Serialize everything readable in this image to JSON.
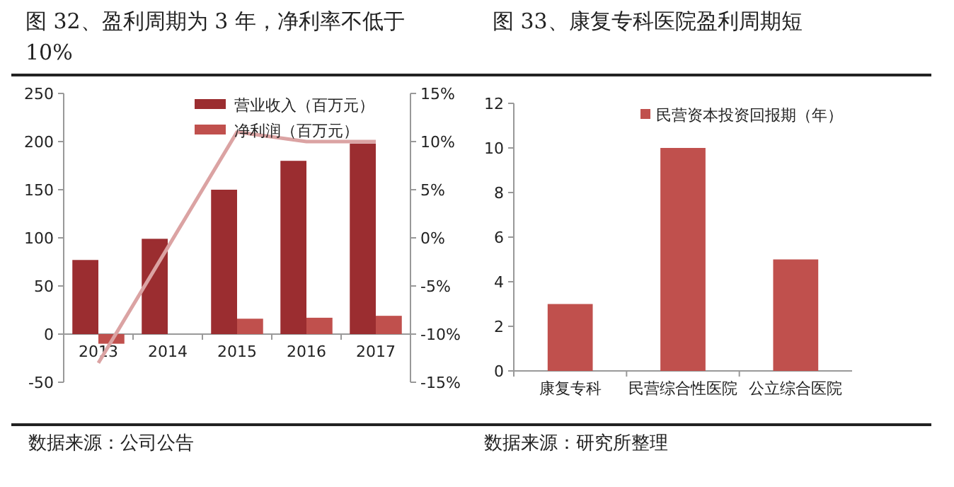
{
  "chart_data": [
    {
      "type": "bar",
      "title": "图 32、盈利周期为 3 年，净利率不低于 10%",
      "categories": [
        "2013",
        "2014",
        "2015",
        "2016",
        "2017"
      ],
      "series": [
        {
          "name": "营业收入（百万元）",
          "color": "#9b2d30",
          "values": [
            77,
            99,
            150,
            180,
            198
          ]
        },
        {
          "name": "净利润（百万元）",
          "color": "#c0504d",
          "values": [
            -10,
            0,
            16,
            17,
            19
          ]
        },
        {
          "type": "line",
          "axis": "y2",
          "color": "#dba3a3",
          "values": [
            -13,
            -1,
            11,
            10,
            10
          ]
        }
      ],
      "ylim": [
        -50,
        250
      ],
      "yticks": [
        -50,
        0,
        50,
        100,
        150,
        200,
        250
      ],
      "y2lim": [
        -15,
        15
      ],
      "y2ticks": [
        {
          "value": -15,
          "label": "-15%"
        },
        {
          "value": -10,
          "label": "-10%"
        },
        {
          "value": -5,
          "label": "-5%"
        },
        {
          "value": 0,
          "label": "0%"
        },
        {
          "value": 5,
          "label": "5%"
        },
        {
          "value": 10,
          "label": "10%"
        },
        {
          "value": 15,
          "label": "15%"
        }
      ],
      "legend": "top",
      "grid": false,
      "annotations": [
        "数据来源：公司公告"
      ]
    },
    {
      "type": "bar",
      "title": "图 33、康复专科医院盈利周期短",
      "categories": [
        "康复专科",
        "民营综合性医院",
        "公立综合医院"
      ],
      "series": [
        {
          "name": "民营资本投资回报期（年）",
          "color": "#c0504d",
          "values": [
            3,
            10,
            5
          ]
        }
      ],
      "ylim": [
        0,
        12
      ],
      "yticks": [
        0,
        2,
        4,
        6,
        8,
        10,
        12
      ],
      "legend": "top",
      "grid": false,
      "annotations": [
        "数据来源：研究所整理"
      ]
    }
  ]
}
